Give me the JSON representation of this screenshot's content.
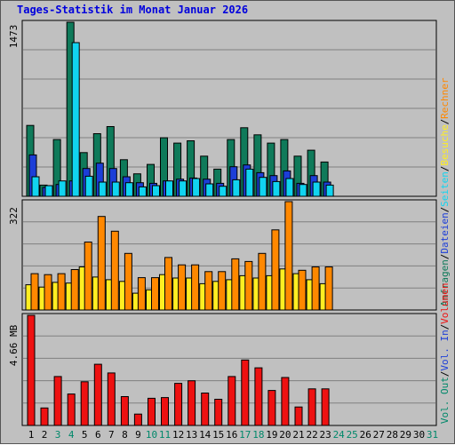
{
  "title": "Tages-Statistik im Monat Januar 2026",
  "colors": {
    "anfragen": "#0f7a5a",
    "dateien": "#1c3ed8",
    "seiten": "#11d4f0",
    "besuche": "#ffee22",
    "rechner": "#ff8800",
    "volumen": "#ee1111",
    "day_weekday": "#000000",
    "day_weekend": "#00886a"
  },
  "chart_data": [
    {
      "type": "bar",
      "panel": "hits",
      "ymax_label": "1473",
      "ylim": [
        0,
        1473
      ],
      "grid": true,
      "legend_placement": "right",
      "legend": [
        "Anfragen",
        "Dateien",
        "Seiten"
      ],
      "categories": [
        "1",
        "2",
        "3",
        "4",
        "5",
        "6",
        "7",
        "8",
        "9",
        "10",
        "11",
        "12",
        "13",
        "14",
        "15",
        "16",
        "17",
        "18",
        "19",
        "20",
        "21",
        "22",
        "23",
        "24",
        "25",
        "26",
        "27",
        "28",
        "29",
        "30",
        "31"
      ],
      "series": [
        {
          "name": "Anfragen",
          "values": [
            600,
            95,
            480,
            1473,
            370,
            530,
            590,
            310,
            190,
            270,
            495,
            450,
            470,
            340,
            230,
            480,
            580,
            520,
            450,
            480,
            340,
            390,
            290,
            0,
            0,
            0,
            0,
            0,
            0,
            0,
            0
          ]
        },
        {
          "name": "Dateien",
          "values": [
            350,
            75,
            100,
            130,
            235,
            280,
            235,
            165,
            115,
            110,
            130,
            145,
            155,
            145,
            110,
            250,
            265,
            200,
            175,
            215,
            110,
            175,
            120,
            0,
            0,
            0,
            0,
            0,
            0,
            0,
            0
          ]
        },
        {
          "name": "Seiten",
          "values": [
            165,
            90,
            130,
            1300,
            170,
            120,
            120,
            115,
            80,
            90,
            130,
            130,
            150,
            105,
            85,
            140,
            230,
            160,
            125,
            150,
            100,
            120,
            95,
            0,
            0,
            0,
            0,
            0,
            0,
            0,
            0
          ]
        }
      ]
    },
    {
      "type": "bar",
      "panel": "visits",
      "ymax_label": "322",
      "ylim": [
        0,
        322
      ],
      "grid": true,
      "legend_placement": "right",
      "legend": [
        "Besuche",
        "Rechner"
      ],
      "categories": [
        "1",
        "2",
        "3",
        "4",
        "5",
        "6",
        "7",
        "8",
        "9",
        "10",
        "11",
        "12",
        "13",
        "14",
        "15",
        "16",
        "17",
        "18",
        "19",
        "20",
        "21",
        "22",
        "23",
        "24",
        "25",
        "26",
        "27",
        "28",
        "29",
        "30",
        "31"
      ],
      "series": [
        {
          "name": "Besuche",
          "values": [
            75,
            68,
            82,
            80,
            128,
            98,
            90,
            85,
            50,
            60,
            105,
            95,
            95,
            78,
            85,
            90,
            102,
            95,
            102,
            122,
            108,
            90,
            78,
            0,
            0,
            0,
            0,
            0,
            0,
            0,
            0
          ]
        },
        {
          "name": "Rechner",
          "values": [
            108,
            105,
            108,
            120,
            202,
            278,
            234,
            168,
            96,
            96,
            156,
            134,
            134,
            114,
            114,
            152,
            144,
            168,
            238,
            322,
            118,
            128,
            128,
            0,
            0,
            0,
            0,
            0,
            0,
            0,
            0
          ]
        }
      ]
    },
    {
      "type": "bar",
      "panel": "volume",
      "ymax_label": "4.66 MB",
      "ylim": [
        0,
        4.66
      ],
      "grid": true,
      "legend_placement": "right",
      "legend": [
        "Volumen",
        "Vol. In",
        "Vol. Out"
      ],
      "categories": [
        "1",
        "2",
        "3",
        "4",
        "5",
        "6",
        "7",
        "8",
        "9",
        "10",
        "11",
        "12",
        "13",
        "14",
        "15",
        "16",
        "17",
        "18",
        "19",
        "20",
        "21",
        "22",
        "23",
        "24",
        "25",
        "26",
        "27",
        "28",
        "29",
        "30",
        "31"
      ],
      "series": [
        {
          "name": "Volumen",
          "values": [
            4.66,
            0.74,
            2.07,
            1.33,
            1.85,
            2.59,
            2.22,
            1.22,
            0.48,
            1.15,
            1.18,
            1.78,
            1.89,
            1.37,
            1.11,
            2.07,
            2.77,
            2.44,
            1.48,
            2.03,
            0.78,
            1.55,
            1.55,
            0,
            0,
            0,
            0,
            0,
            0,
            0,
            0
          ]
        }
      ]
    }
  ]
}
